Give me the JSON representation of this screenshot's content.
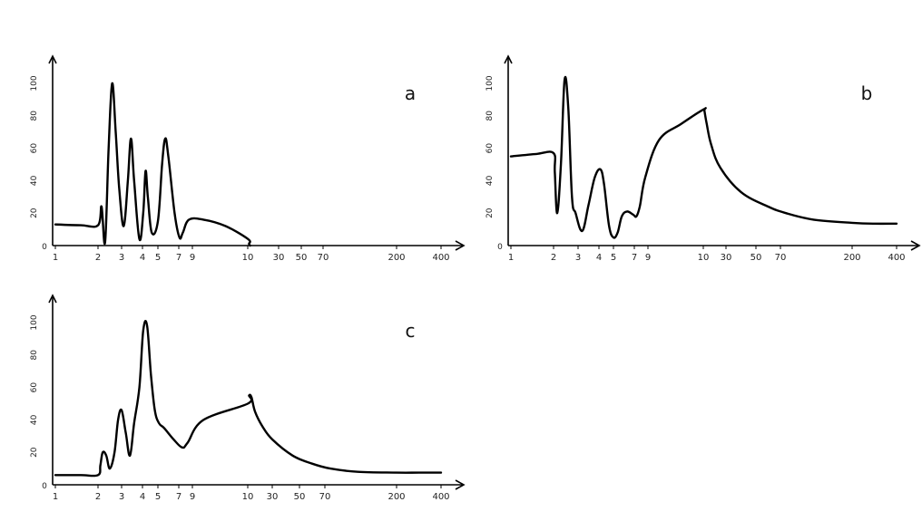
{
  "chart_data": [
    {
      "type": "line",
      "panel_label": "a",
      "x_ticks": [
        "1",
        "2",
        "3",
        "4",
        "5",
        "7",
        "9",
        "10",
        "30",
        "50",
        "70",
        "200",
        "400"
      ],
      "y_ticks": [
        "0",
        "20",
        "40",
        "60",
        "80",
        "100"
      ],
      "ylim": [
        0,
        100
      ],
      "series": [
        {
          "points": [
            [
              1,
              13
            ],
            [
              1.6,
              12.5
            ],
            [
              2,
              12.5
            ],
            [
              2.15,
              24
            ],
            [
              2.3,
              2
            ],
            [
              2.45,
              60
            ],
            [
              2.6,
              100
            ],
            [
              2.75,
              70
            ],
            [
              2.9,
              35
            ],
            [
              3.1,
              12
            ],
            [
              3.3,
              40
            ],
            [
              3.45,
              66
            ],
            [
              3.6,
              40
            ],
            [
              3.85,
              4
            ],
            [
              4.05,
              20
            ],
            [
              4.2,
              46
            ],
            [
              4.35,
              30
            ],
            [
              4.6,
              8
            ],
            [
              5.0,
              15
            ],
            [
              5.4,
              50
            ],
            [
              5.7,
              66
            ],
            [
              6.0,
              55
            ],
            [
              6.6,
              20
            ],
            [
              7.1,
              5
            ],
            [
              7.6,
              8
            ],
            [
              8.5,
              16
            ],
            [
              9.2,
              16
            ],
            [
              9.6,
              12
            ],
            [
              10.2,
              4
            ],
            [
              10.8,
              1
            ],
            [
              11.5,
              0
            ]
          ]
        }
      ]
    },
    {
      "type": "line",
      "panel_label": "b",
      "x_ticks": [
        "1",
        "2",
        "3",
        "4",
        "5",
        "7",
        "9",
        "10",
        "30",
        "50",
        "70",
        "200",
        "400"
      ],
      "y_ticks": [
        "0",
        "20",
        "40",
        "60",
        "80",
        "100"
      ],
      "ylim": [
        0,
        100
      ],
      "series": [
        {
          "points": [
            [
              1,
              55
            ],
            [
              1.6,
              56.5
            ],
            [
              2.0,
              57
            ],
            [
              2.05,
              45
            ],
            [
              2.15,
              20
            ],
            [
              2.3,
              50
            ],
            [
              2.45,
              102
            ],
            [
              2.6,
              85
            ],
            [
              2.75,
              30
            ],
            [
              2.9,
              20
            ],
            [
              3.2,
              9
            ],
            [
              3.5,
              25
            ],
            [
              3.8,
              42
            ],
            [
              4.1,
              47
            ],
            [
              4.35,
              38
            ],
            [
              4.7,
              12
            ],
            [
              5.0,
              5
            ],
            [
              5.4,
              8
            ],
            [
              5.8,
              18
            ],
            [
              6.3,
              21
            ],
            [
              6.9,
              19
            ],
            [
              7.3,
              18
            ],
            [
              7.8,
              24
            ],
            [
              8.6,
              42
            ],
            [
              9.2,
              65
            ],
            [
              9.6,
              75
            ],
            [
              10.5,
              84
            ],
            [
              11,
              83
            ],
            [
              13,
              75
            ],
            [
              17,
              62
            ],
            [
              25,
              48
            ],
            [
              40,
              33
            ],
            [
              60,
              24
            ],
            [
              80,
              20
            ],
            [
              130,
              16
            ],
            [
              200,
              14
            ],
            [
              300,
              13.5
            ],
            [
              400,
              13.5
            ]
          ]
        }
      ]
    },
    {
      "type": "line",
      "panel_label": "c",
      "x_ticks": [
        "1",
        "2",
        "3",
        "4",
        "5",
        "7",
        "9",
        "10",
        "30",
        "50",
        "70",
        "200",
        "400"
      ],
      "y_ticks": [
        "0",
        "20",
        "40",
        "60",
        "80",
        "100"
      ],
      "ylim": [
        0,
        100
      ],
      "series": [
        {
          "points": [
            [
              1,
              6
            ],
            [
              1.6,
              6
            ],
            [
              2,
              6
            ],
            [
              2.1,
              12
            ],
            [
              2.2,
              20
            ],
            [
              2.35,
              18
            ],
            [
              2.5,
              10
            ],
            [
              2.7,
              20
            ],
            [
              2.85,
              40
            ],
            [
              3,
              46
            ],
            [
              3.2,
              32
            ],
            [
              3.4,
              18
            ],
            [
              3.6,
              38
            ],
            [
              3.85,
              60
            ],
            [
              4.05,
              95
            ],
            [
              4.3,
              98
            ],
            [
              4.55,
              68
            ],
            [
              4.8,
              46
            ],
            [
              5.1,
              38
            ],
            [
              5.6,
              35
            ],
            [
              6.5,
              28
            ],
            [
              7.5,
              23
            ],
            [
              8.3,
              26
            ],
            [
              9.2,
              40
            ],
            [
              10,
              50
            ],
            [
              11,
              55
            ],
            [
              13,
              54
            ],
            [
              16,
              45
            ],
            [
              22,
              36
            ],
            [
              30,
              28
            ],
            [
              45,
              18
            ],
            [
              60,
              13
            ],
            [
              80,
              10
            ],
            [
              130,
              8
            ],
            [
              200,
              7.5
            ],
            [
              300,
              7.5
            ],
            [
              400,
              7.5
            ]
          ]
        }
      ]
    }
  ]
}
